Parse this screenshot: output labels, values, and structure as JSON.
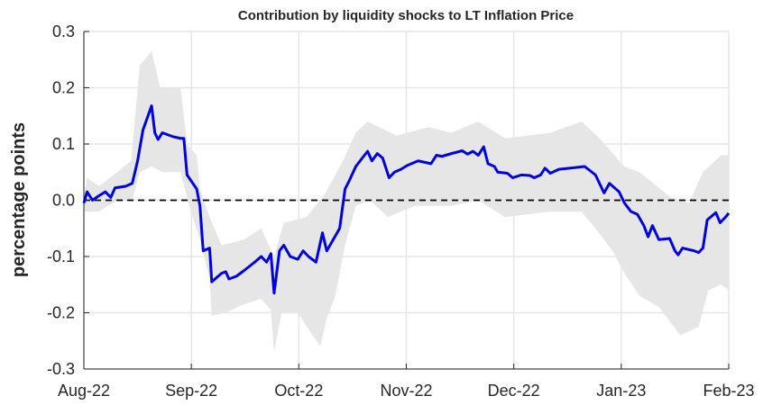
{
  "chart_data": {
    "type": "line",
    "title": "Contribution by liquidity shocks to LT Inflation Price",
    "y_label": "percentage points",
    "xlim": [
      0,
      6
    ],
    "xticks": [
      {
        "value": 0,
        "label": "Aug-22"
      },
      {
        "value": 1,
        "label": "Sep-22"
      },
      {
        "value": 2,
        "label": "Oct-22"
      },
      {
        "value": 3,
        "label": "Nov-22"
      },
      {
        "value": 4,
        "label": "Dec-22"
      },
      {
        "value": 5,
        "label": "Jan-23"
      },
      {
        "value": 6,
        "label": "Feb-23"
      }
    ],
    "ylim": [
      -0.3,
      0.3
    ],
    "yticks": [
      -0.3,
      -0.2,
      -0.1,
      {
        "value": 0,
        "label": "0.0"
      },
      0.1,
      0.2,
      0.3
    ],
    "grid": true,
    "reference_line": 0,
    "x": [
      0,
      0.03,
      0.08,
      0.14,
      0.2,
      0.25,
      0.29,
      0.39,
      0.45,
      0.5,
      0.55,
      0.63,
      0.66,
      0.69,
      0.73,
      0.83,
      0.9,
      0.93,
      0.96,
      1.05,
      1.08,
      1.11,
      1.17,
      1.19,
      1.28,
      1.32,
      1.35,
      1.42,
      1.49,
      1.59,
      1.65,
      1.7,
      1.74,
      1.77,
      1.82,
      1.86,
      1.92,
      1.99,
      2.04,
      2.09,
      2.16,
      2.22,
      2.26,
      2.32,
      2.38,
      2.43,
      2.47,
      2.53,
      2.59,
      2.64,
      2.68,
      2.73,
      2.78,
      2.84,
      2.89,
      2.95,
      3.01,
      3.11,
      3.23,
      3.28,
      3.33,
      3.42,
      3.52,
      3.57,
      3.62,
      3.67,
      3.72,
      3.76,
      3.82,
      3.85,
      3.94,
      3.99,
      4.07,
      4.15,
      4.19,
      4.25,
      4.29,
      4.34,
      4.42,
      4.66,
      4.76,
      4.84,
      4.89,
      4.98,
      5.03,
      5.09,
      5.15,
      5.21,
      5.25,
      5.29,
      5.35,
      5.45,
      5.5,
      5.53,
      5.57,
      5.68,
      5.72,
      5.76,
      5.8,
      5.88,
      5.92,
      5.97,
      6
    ],
    "series": [
      {
        "color": "#0000dd",
        "values": [
          -0.005,
          0.015,
          0,
          0.008,
          0.015,
          0.005,
          0.022,
          0.025,
          0.03,
          0.07,
          0.125,
          0.168,
          0.12,
          0.108,
          0.12,
          0.113,
          0.11,
          0.11,
          0.045,
          0.02,
          -0.01,
          -0.09,
          -0.085,
          -0.145,
          -0.13,
          -0.127,
          -0.14,
          -0.135,
          -0.125,
          -0.11,
          -0.1,
          -0.11,
          -0.095,
          -0.165,
          -0.09,
          -0.08,
          -0.1,
          -0.105,
          -0.09,
          -0.1,
          -0.11,
          -0.058,
          -0.09,
          -0.07,
          -0.05,
          0.02,
          0.035,
          0.06,
          0.075,
          0.087,
          0.07,
          0.083,
          0.075,
          0.04,
          0.05,
          0.055,
          0.062,
          0.07,
          0.065,
          0.08,
          0.078,
          0.083,
          0.088,
          0.082,
          0.087,
          0.08,
          0.095,
          0.065,
          0.06,
          0.05,
          0.048,
          0.04,
          0.045,
          0.044,
          0.04,
          0.045,
          0.057,
          0.048,
          0.055,
          0.06,
          0.045,
          0.013,
          0.03,
          0.015,
          -0.005,
          -0.02,
          -0.025,
          -0.045,
          -0.065,
          -0.045,
          -0.07,
          -0.068,
          -0.09,
          -0.097,
          -0.085,
          -0.09,
          -0.093,
          -0.085,
          -0.035,
          -0.022,
          -0.04,
          -0.03,
          -0.023
        ]
      }
    ],
    "band": {
      "color": "#e6e6e6",
      "upper": {
        "x": [
          0,
          0.03,
          0.14,
          0.31,
          0.44,
          0.52,
          0.63,
          0.71,
          0.9,
          0.96,
          1.05,
          1.08,
          1.17,
          1.28,
          1.49,
          1.65,
          1.77,
          1.86,
          2.07,
          2.24,
          2.41,
          2.53,
          2.64,
          2.91,
          3.21,
          3.42,
          3.67,
          3.92,
          4.34,
          4.63,
          4.8,
          4.89,
          5.03,
          5.17,
          5.46,
          5.63,
          5.76,
          5.93,
          6
        ],
        "values": [
          0,
          0.04,
          0.025,
          0.05,
          0.07,
          0.24,
          0.265,
          0.2,
          0.2,
          0.1,
          0.08,
          0.02,
          -0.03,
          -0.08,
          -0.07,
          -0.05,
          -0.1,
          -0.04,
          -0.03,
          0.01,
          0.07,
          0.12,
          0.14,
          0.115,
          0.13,
          0.12,
          0.14,
          0.11,
          0.12,
          0.14,
          0.11,
          0.09,
          0.06,
          0.05,
          0.005,
          -0.005,
          0.05,
          0.08,
          0.08
        ]
      },
      "lower": {
        "x": [
          0,
          0.14,
          0.31,
          0.45,
          0.52,
          0.63,
          0.73,
          0.9,
          0.98,
          1.08,
          1.17,
          1.19,
          1.32,
          1.49,
          1.65,
          1.74,
          1.77,
          1.84,
          1.99,
          2.11,
          2.2,
          2.26,
          2.34,
          2.43,
          2.53,
          2.66,
          2.83,
          3.08,
          3.42,
          3.67,
          3.92,
          4.34,
          4.63,
          4.8,
          4.92,
          5.03,
          5.17,
          5.35,
          5.45,
          5.55,
          5.72,
          5.81,
          5.93,
          6
        ],
        "values": [
          -0.02,
          -0.02,
          0,
          0,
          0.05,
          0.06,
          0.05,
          0.05,
          -0.01,
          -0.07,
          -0.14,
          -0.205,
          -0.2,
          -0.185,
          -0.175,
          -0.195,
          -0.27,
          -0.2,
          -0.2,
          -0.235,
          -0.26,
          -0.21,
          -0.17,
          -0.08,
          -0.01,
          0,
          -0.03,
          -0.01,
          -0.01,
          0,
          -0.03,
          -0.02,
          -0.02,
          -0.06,
          -0.09,
          -0.13,
          -0.17,
          -0.19,
          -0.215,
          -0.24,
          -0.225,
          -0.16,
          -0.15,
          -0.16
        ]
      }
    }
  }
}
